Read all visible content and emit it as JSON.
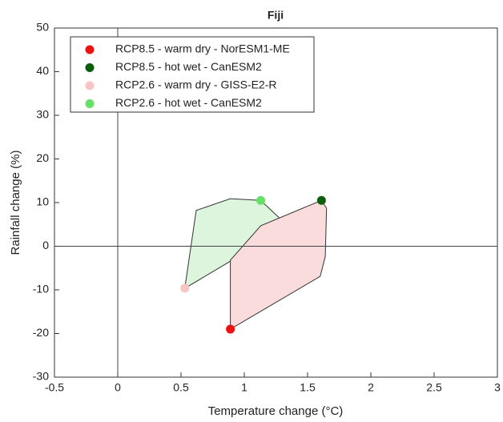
{
  "chart_data": {
    "type": "scatter",
    "title": "Fiji",
    "x_label": "Temperature change (°C)",
    "y_label": "Rainfall change (%)",
    "xlim": [
      -0.5,
      3
    ],
    "xticks": [
      -0.5,
      0,
      0.5,
      1,
      1.5,
      2,
      2.5,
      3
    ],
    "ylim": [
      -30,
      50
    ],
    "yticks": [
      -30,
      -20,
      -10,
      0,
      10,
      20,
      30,
      40,
      50
    ],
    "grid": false,
    "zero_lines": true,
    "legend": "upper left",
    "series": [
      {
        "name": "RCP8.5 - warm dry - NorESM1-ME",
        "color": "#ee1111",
        "x": [
          0.89
        ],
        "values": [
          -19
        ]
      },
      {
        "name": "RCP8.5 - hot wet - CanESM2",
        "color": "#0b5e0b",
        "x": [
          1.61
        ],
        "values": [
          10.5
        ]
      },
      {
        "name": "RCP2.6 - warm dry - GISS-E2-R",
        "color": "#f9c4c4",
        "x": [
          0.53
        ],
        "values": [
          -9.6
        ]
      },
      {
        "name": "RCP2.6 - hot wet - CanESM2",
        "color": "#66e066",
        "x": [
          1.13
        ],
        "values": [
          10.5
        ]
      }
    ],
    "polygons": [
      {
        "color": "#dcf5dc",
        "x": [
          0.53,
          0.62,
          0.89,
          1.13,
          1.35,
          0.55
        ],
        "y": [
          -9.6,
          8.2,
          10.9,
          10.5,
          4.5,
          -9.3
        ]
      },
      {
        "color": "#fadcdc",
        "x": [
          0.89,
          0.89,
          1.13,
          1.61,
          1.65,
          1.64,
          1.6
        ],
        "y": [
          -19,
          -3.2,
          4.7,
          10.5,
          8.7,
          -2.3,
          -6.9
        ]
      }
    ]
  }
}
